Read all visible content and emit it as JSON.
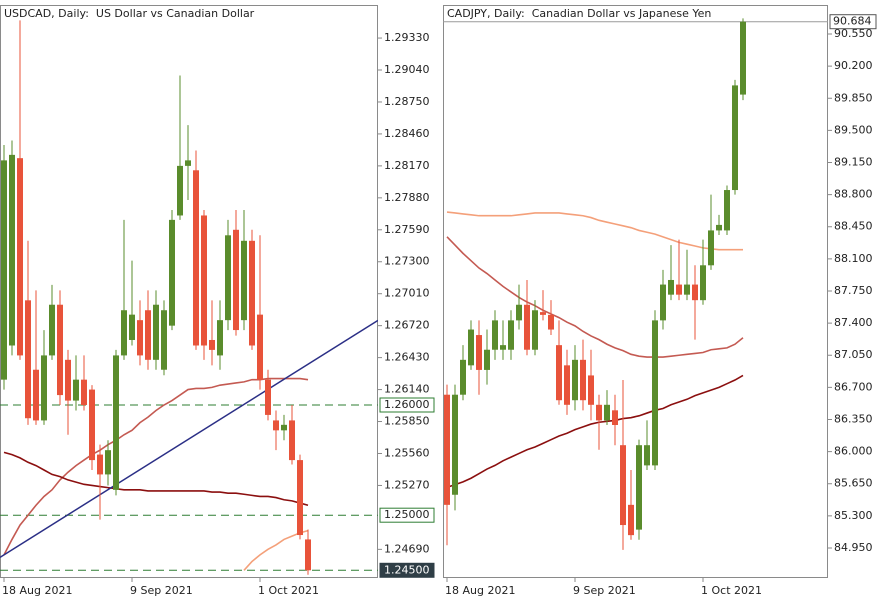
{
  "chart_data": [
    {
      "type": "candlestick",
      "title": "USDCAD, Daily:  US Dollar vs Canadian Dollar",
      "categories": [
        "18 Aug 2021",
        null,
        null,
        null,
        null,
        null,
        null,
        null,
        null,
        null,
        null,
        null,
        null,
        null,
        null,
        null,
        "9 Sep 2021",
        null,
        null,
        null,
        null,
        null,
        null,
        null,
        null,
        null,
        null,
        null,
        null,
        null,
        null,
        null,
        "1 Oct 2021",
        null,
        null,
        null,
        null,
        null,
        null
      ],
      "open": [
        1.2623,
        1.2654,
        1.2824,
        1.2695,
        1.2632,
        1.2586,
        1.2645,
        1.2691,
        1.2641,
        1.2604,
        1.2623,
        1.2614,
        1.2555,
        1.2537,
        1.2523,
        1.2645,
        1.2659,
        1.2677,
        1.2686,
        1.2641,
        1.2632,
        1.2672,
        1.2772,
        1.2817,
        1.2813,
        1.2772,
        1.2659,
        1.2645,
        1.2677,
        1.2759,
        1.2677,
        1.2749,
        1.2682,
        1.2623,
        1.2586,
        1.2577,
        1.2586,
        1.255,
        1.2478
      ],
      "high": [
        1.2836,
        1.284,
        1.2949,
        1.2749,
        1.2704,
        1.2668,
        1.2709,
        1.2704,
        1.265,
        1.2645,
        1.2645,
        1.2618,
        1.2564,
        1.2568,
        1.265,
        1.2768,
        1.2731,
        1.2695,
        1.2704,
        1.2704,
        1.2695,
        1.2777,
        1.2899,
        1.2854,
        1.2831,
        1.2777,
        1.2695,
        1.2695,
        1.2768,
        1.2777,
        1.2777,
        1.2759,
        1.2754,
        1.2632,
        1.2595,
        1.2591,
        1.26,
        1.2555,
        1.2487
      ],
      "low": [
        1.2614,
        1.2645,
        1.2641,
        1.2582,
        1.2582,
        1.2582,
        1.2641,
        1.26,
        1.2573,
        1.2595,
        1.2595,
        1.2541,
        1.2496,
        1.2527,
        1.2518,
        1.2641,
        1.2654,
        1.2636,
        1.2632,
        1.2632,
        1.2627,
        1.2668,
        1.2768,
        1.2786,
        1.265,
        1.2641,
        1.2636,
        1.2632,
        1.2668,
        1.2663,
        1.2668,
        1.265,
        1.2614,
        1.2586,
        1.2559,
        1.2568,
        1.2546,
        1.2478,
        1.2446
      ],
      "close": [
        1.2822,
        1.2827,
        1.2645,
        1.2588,
        1.2586,
        1.2645,
        1.2691,
        1.2609,
        1.2604,
        1.2623,
        1.26,
        1.255,
        1.2537,
        1.2559,
        1.2645,
        1.2686,
        1.2682,
        1.2645,
        1.2641,
        1.2691,
        1.2686,
        1.2768,
        1.2817,
        1.2822,
        1.2654,
        1.2654,
        1.265,
        1.2677,
        1.2754,
        1.2668,
        1.2749,
        1.2654,
        1.2623,
        1.2591,
        1.2577,
        1.2582,
        1.255,
        1.2482,
        1.245
      ],
      "up_color": "#5a8c2c",
      "down_color": "#e8533a",
      "lines": [
        {
          "color": "#c45a52",
          "values": [
            1.2464,
            1.2478,
            1.2491,
            1.25,
            1.2509,
            1.2517,
            1.2523,
            1.2532,
            1.2539,
            1.2545,
            1.255,
            1.2555,
            1.2559,
            1.2564,
            1.2568,
            1.2573,
            1.2577,
            1.2584,
            1.2589,
            1.2595,
            1.26,
            1.2604,
            1.2609,
            1.2614,
            1.2615,
            1.2615,
            1.2616,
            1.2618,
            1.2619,
            1.262,
            1.2621,
            1.2623,
            1.2623,
            1.2624,
            1.2624,
            1.2624,
            1.2624,
            1.2624,
            1.2623
          ]
        },
        {
          "color": "#8b0f0f",
          "values": [
            1.2557,
            1.2555,
            1.2552,
            1.2548,
            1.2545,
            1.2541,
            1.2537,
            1.2535,
            1.2532,
            1.253,
            1.2528,
            1.2527,
            1.2526,
            1.2525,
            1.2524,
            1.2523,
            1.2523,
            1.2523,
            1.2522,
            1.2522,
            1.2522,
            1.2522,
            1.2522,
            1.2522,
            1.2522,
            1.2522,
            1.2521,
            1.2521,
            1.252,
            1.252,
            1.2519,
            1.2518,
            1.2517,
            1.2517,
            1.2516,
            1.2514,
            1.2513,
            1.2511,
            1.2509
          ]
        },
        {
          "color": "#f4a07a",
          "values": [
            null,
            null,
            null,
            null,
            null,
            null,
            null,
            null,
            null,
            null,
            null,
            null,
            null,
            null,
            null,
            null,
            null,
            null,
            null,
            null,
            null,
            null,
            null,
            null,
            null,
            null,
            null,
            null,
            null,
            null,
            1.245,
            1.2458,
            1.2464,
            1.2469,
            1.2473,
            1.2478,
            1.2481,
            1.2484,
            1.2486
          ]
        }
      ],
      "trendline": {
        "x": [
          0,
          38
        ],
        "y": [
          1.2464,
          1.2637
        ],
        "color": "#2b2f86"
      },
      "hlines": [
        {
          "value": 1.26,
          "label": "1.26000",
          "highlight": false
        },
        {
          "value": 1.25,
          "label": "1.25000",
          "highlight": false
        },
        {
          "value": 1.245,
          "label": "1.24500",
          "highlight": true
        }
      ],
      "ylim": [
        1.2443,
        1.2963
      ],
      "yticks": [
        {
          "value": 1.2933,
          "label": "1.29330"
        },
        {
          "value": 1.2904,
          "label": "1.29040"
        },
        {
          "value": 1.2875,
          "label": "1.28750"
        },
        {
          "value": 1.2846,
          "label": "1.28460"
        },
        {
          "value": 1.2817,
          "label": "1.28170"
        },
        {
          "value": 1.2788,
          "label": "1.27880"
        },
        {
          "value": 1.2759,
          "label": "1.27590"
        },
        {
          "value": 1.273,
          "label": "1.27300"
        },
        {
          "value": 1.2701,
          "label": "1.27010"
        },
        {
          "value": 1.2672,
          "label": "1.26720"
        },
        {
          "value": 1.2643,
          "label": "1.26430"
        },
        {
          "value": 1.2614,
          "label": "1.26140"
        },
        {
          "value": 1.2585,
          "label": "1.25850"
        },
        {
          "value": 1.2556,
          "label": "1.25560"
        },
        {
          "value": 1.2527,
          "label": "1.25270"
        },
        {
          "value": 1.2469,
          "label": "1.24690"
        }
      ]
    },
    {
      "type": "candlestick",
      "title": "CADJPY, Daily:  Canadian Dollar vs Japanese Yen",
      "categories": [
        "18 Aug 2021",
        null,
        null,
        null,
        null,
        null,
        null,
        null,
        null,
        null,
        null,
        null,
        null,
        null,
        null,
        null,
        "9 Sep 2021",
        null,
        null,
        null,
        null,
        null,
        null,
        null,
        null,
        null,
        null,
        null,
        null,
        null,
        null,
        null,
        "1 Oct 2021",
        null,
        null,
        null,
        null,
        null
      ],
      "open": [
        86.62,
        85.53,
        86.62,
        86.94,
        87.27,
        86.89,
        87.11,
        87.11,
        87.11,
        87.43,
        87.6,
        87.11,
        87.52,
        87.49,
        87.16,
        86.94,
        86.56,
        87.0,
        86.83,
        86.51,
        86.34,
        86.45,
        86.07,
        85.42,
        85.15,
        85.85,
        85.85,
        87.43,
        87.71,
        87.82,
        87.71,
        87.82,
        87.65,
        88.03,
        88.41,
        88.41,
        88.85,
        89.89
      ],
      "high": [
        86.73,
        86.73,
        87.16,
        87.43,
        87.43,
        87.33,
        87.54,
        87.43,
        87.54,
        87.82,
        87.87,
        87.65,
        87.76,
        87.65,
        87.43,
        87.11,
        87.16,
        87.22,
        87.11,
        86.62,
        86.67,
        86.62,
        86.78,
        85.8,
        86.13,
        86.34,
        87.54,
        87.98,
        88.25,
        88.31,
        88.2,
        88.03,
        88.31,
        88.8,
        88.58,
        88.9,
        90.05,
        90.72
      ],
      "low": [
        84.98,
        85.36,
        86.56,
        86.89,
        86.62,
        86.73,
        87.0,
        87.0,
        87.0,
        87.33,
        87.05,
        87.05,
        87.43,
        87.27,
        86.51,
        86.4,
        86.45,
        86.45,
        86.34,
        86.02,
        86.29,
        86.07,
        84.93,
        85.04,
        85.04,
        85.8,
        85.8,
        87.33,
        87.65,
        87.65,
        87.65,
        87.22,
        87.6,
        87.98,
        88.36,
        88.36,
        88.8,
        89.83
      ],
      "close": [
        85.42,
        86.62,
        87.0,
        87.33,
        86.89,
        87.11,
        87.43,
        87.16,
        87.43,
        87.6,
        87.11,
        87.54,
        87.49,
        87.33,
        86.56,
        86.51,
        87.0,
        86.56,
        86.51,
        86.34,
        86.51,
        86.29,
        85.2,
        85.09,
        86.07,
        86.07,
        87.43,
        87.82,
        87.87,
        87.71,
        87.82,
        87.65,
        88.03,
        88.41,
        88.47,
        88.85,
        89.99,
        90.684
      ],
      "up_color": "#5a8c2c",
      "down_color": "#e8533a",
      "lines": [
        {
          "color": "#f4a07a",
          "values": [
            88.61,
            88.6,
            88.59,
            88.58,
            88.57,
            88.57,
            88.57,
            88.57,
            88.57,
            88.58,
            88.59,
            88.6,
            88.6,
            88.6,
            88.6,
            88.59,
            88.58,
            88.57,
            88.55,
            88.52,
            88.5,
            88.48,
            88.46,
            88.44,
            88.41,
            88.39,
            88.37,
            88.34,
            88.31,
            88.28,
            88.26,
            88.24,
            88.22,
            88.21,
            88.2,
            88.2,
            88.2,
            88.2
          ]
        },
        {
          "color": "#c45a52",
          "values": [
            88.34,
            88.25,
            88.16,
            88.08,
            88.0,
            87.94,
            87.87,
            87.8,
            87.74,
            87.68,
            87.63,
            87.59,
            87.54,
            87.5,
            87.46,
            87.41,
            87.37,
            87.31,
            87.26,
            87.22,
            87.17,
            87.13,
            87.1,
            87.06,
            87.04,
            87.03,
            87.03,
            87.03,
            87.04,
            87.05,
            87.06,
            87.07,
            87.08,
            87.11,
            87.12,
            87.13,
            87.17,
            87.24
          ]
        },
        {
          "color": "#8b0f0f",
          "values": [
            85.61,
            85.64,
            85.67,
            85.71,
            85.76,
            85.81,
            85.85,
            85.9,
            85.94,
            85.98,
            86.02,
            86.05,
            86.09,
            86.13,
            86.17,
            86.2,
            86.24,
            86.27,
            86.3,
            86.32,
            86.33,
            86.34,
            86.36,
            86.37,
            86.39,
            86.42,
            86.45,
            86.47,
            86.51,
            86.54,
            86.57,
            86.61,
            86.64,
            86.67,
            86.7,
            86.74,
            86.78,
            86.83
          ]
        }
      ],
      "last_price": {
        "value": 90.684,
        "label": "90.684"
      },
      "ylim": [
        84.623,
        90.866
      ],
      "yticks": [
        {
          "value": 90.55,
          "label": "90.550"
        },
        {
          "value": 90.2,
          "label": "90.200"
        },
        {
          "value": 89.85,
          "label": "89.850"
        },
        {
          "value": 89.5,
          "label": "89.500"
        },
        {
          "value": 89.15,
          "label": "89.150"
        },
        {
          "value": 88.8,
          "label": "88.800"
        },
        {
          "value": 88.45,
          "label": "88.450"
        },
        {
          "value": 88.1,
          "label": "88.100"
        },
        {
          "value": 87.75,
          "label": "87.750"
        },
        {
          "value": 87.4,
          "label": "87.400"
        },
        {
          "value": 87.05,
          "label": "87.050"
        },
        {
          "value": 86.7,
          "label": "86.700"
        },
        {
          "value": 86.35,
          "label": "86.350"
        },
        {
          "value": 86.0,
          "label": "86.000"
        },
        {
          "value": 85.65,
          "label": "85.650"
        },
        {
          "value": 85.3,
          "label": "85.300"
        },
        {
          "value": 84.95,
          "label": "84.950"
        }
      ]
    }
  ]
}
